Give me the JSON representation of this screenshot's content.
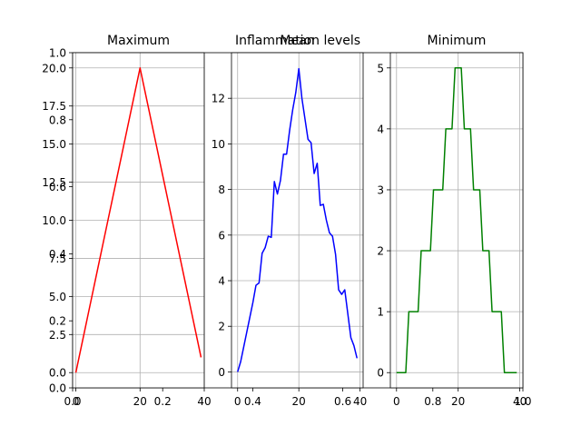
{
  "figure": {
    "suptitle": "Inflammation levels",
    "background_axis": {
      "xticks": [
        "0.0",
        "0.2",
        "0.4",
        "0.6",
        "0.8",
        "1.0"
      ],
      "yticks": [
        "0.0",
        "0.2",
        "0.4",
        "0.6",
        "0.8",
        "1.0"
      ]
    }
  },
  "chart_data": [
    {
      "type": "line",
      "title": "Maximum",
      "color": "#ff0000",
      "grid": true,
      "xlim": [
        -1,
        40
      ],
      "ylim": [
        -1,
        21
      ],
      "xticks": [
        0,
        20,
        40
      ],
      "yticks": [
        0.0,
        2.5,
        5.0,
        7.5,
        10.0,
        12.5,
        15.0,
        17.5,
        20.0
      ],
      "ytick_labels": [
        "0.0",
        "2.5",
        "5.0",
        "7.5",
        "10.0",
        "12.5",
        "15.0",
        "17.5",
        "20.0"
      ],
      "x": [
        0,
        1,
        2,
        3,
        4,
        5,
        6,
        7,
        8,
        9,
        10,
        11,
        12,
        13,
        14,
        15,
        16,
        17,
        18,
        19,
        20,
        21,
        22,
        23,
        24,
        25,
        26,
        27,
        28,
        29,
        30,
        31,
        32,
        33,
        34,
        35,
        36,
        37,
        38,
        39
      ],
      "y": [
        0,
        1,
        2,
        3,
        4,
        5,
        6,
        7,
        8,
        9,
        10,
        11,
        12,
        13,
        14,
        15,
        16,
        17,
        18,
        19,
        20,
        19,
        18,
        17,
        16,
        15,
        14,
        13,
        12,
        11,
        10,
        9,
        8,
        7,
        6,
        5,
        4,
        3,
        2,
        1
      ]
    },
    {
      "type": "line",
      "title": "Mean",
      "color": "#0000ff",
      "grid": true,
      "xlim": [
        -2,
        41
      ],
      "ylim": [
        -0.7,
        14.0
      ],
      "xticks": [
        0,
        20,
        40
      ],
      "yticks": [
        0,
        2,
        4,
        6,
        8,
        10,
        12
      ],
      "ytick_labels": [
        "0",
        "2",
        "4",
        "6",
        "8",
        "10",
        "12"
      ],
      "x": [
        0,
        1,
        2,
        3,
        4,
        5,
        6,
        7,
        8,
        9,
        10,
        11,
        12,
        13,
        14,
        15,
        16,
        17,
        18,
        19,
        20,
        21,
        22,
        23,
        24,
        25,
        26,
        27,
        28,
        29,
        30,
        31,
        32,
        33,
        34,
        35,
        36,
        37,
        38,
        39
      ],
      "y": [
        0.0,
        0.45,
        1.1,
        1.75,
        2.4,
        3.05,
        3.8,
        3.9,
        5.2,
        5.45,
        5.95,
        5.9,
        8.35,
        7.8,
        8.4,
        9.55,
        9.55,
        10.6,
        11.5,
        12.25,
        13.3,
        12.0,
        11.1,
        10.2,
        10.05,
        8.7,
        9.15,
        7.3,
        7.35,
        6.65,
        6.1,
        5.95,
        5.15,
        3.6,
        3.4,
        3.6,
        2.55,
        1.5,
        1.15,
        0.6
      ]
    },
    {
      "type": "line",
      "title": "Minimum",
      "color": "#008000",
      "grid": true,
      "xlim": [
        -2,
        41
      ],
      "ylim": [
        -0.25,
        5.25
      ],
      "xticks": [
        0,
        20,
        40
      ],
      "yticks": [
        0,
        1,
        2,
        3,
        4,
        5
      ],
      "ytick_labels": [
        "0",
        "1",
        "2",
        "3",
        "4",
        "5"
      ],
      "x": [
        0,
        1,
        2,
        3,
        4,
        5,
        6,
        7,
        8,
        9,
        10,
        11,
        12,
        13,
        14,
        15,
        16,
        17,
        18,
        19,
        20,
        21,
        22,
        23,
        24,
        25,
        26,
        27,
        28,
        29,
        30,
        31,
        32,
        33,
        34,
        35,
        36,
        37,
        38,
        39
      ],
      "y": [
        0,
        0,
        0,
        0,
        1,
        1,
        1,
        1,
        2,
        2,
        2,
        2,
        3,
        3,
        3,
        3,
        4,
        4,
        4,
        5,
        5,
        5,
        4,
        4,
        4,
        3,
        3,
        3,
        2,
        2,
        2,
        1,
        1,
        1,
        1,
        0,
        0,
        0,
        0,
        0
      ]
    }
  ]
}
